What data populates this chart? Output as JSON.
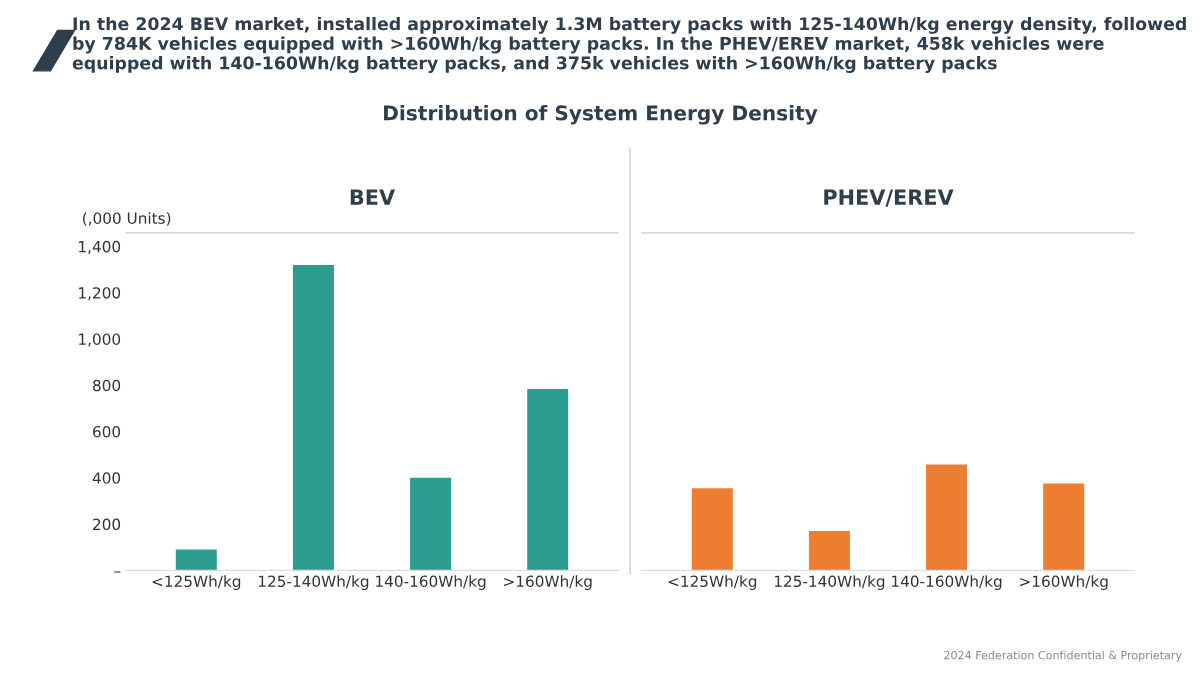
{
  "chart_data": [
    {
      "type": "bar",
      "title": "BEV",
      "ylabel": "(,000 Units)",
      "categories": [
        "<125Wh/kg",
        "125-140Wh/kg",
        "140-160Wh/kg",
        ">160Wh/kg"
      ],
      "values": [
        90,
        1320,
        400,
        784
      ],
      "color": "#2a9d8f",
      "ylim": [
        0,
        1400
      ],
      "yticks": [
        {
          "value": 0,
          "label": "–"
        },
        {
          "value": 200,
          "label": "200"
        },
        {
          "value": 400,
          "label": "400"
        },
        {
          "value": 600,
          "label": "600"
        },
        {
          "value": 800,
          "label": "800"
        },
        {
          "value": 1000,
          "label": "1,000"
        },
        {
          "value": 1200,
          "label": "1,200"
        },
        {
          "value": 1400,
          "label": "1,400"
        }
      ],
      "grid": false,
      "legend": false,
      "annotations": [
        "In the 2024 BEV market, installed approximately 1.3M battery packs with 125-140Wh/kg energy density, followed by 784K vehicles equipped with >160Wh/kg battery packs. In the PHEV/EREV market, 458k vehicles were equipped with 140-160Wh/kg battery packs, and 375k vehicles with >160Wh/kg battery packs",
        "Distribution of System Energy Density",
        "2024 Federation Confidential & Proprietary"
      ]
    },
    {
      "type": "bar",
      "title": "PHEV/EREV",
      "categories": [
        "<125Wh/kg",
        "125-140Wh/kg",
        "140-160Wh/kg",
        ">160Wh/kg"
      ],
      "values": [
        355,
        170,
        458,
        375
      ],
      "color": "#ed7d31",
      "ylim": [
        0,
        1400
      ],
      "tick_labels": "x",
      "grid": false,
      "legend": false
    }
  ]
}
